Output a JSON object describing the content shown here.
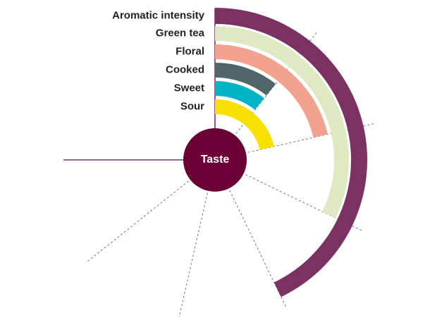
{
  "chart_data": {
    "type": "radial-bar",
    "center_label": "Taste",
    "categories": [
      "Aromatic intensity",
      "Green tea",
      "Floral",
      "Cooked",
      "Sweet",
      "Sour"
    ],
    "values": [
      4,
      3,
      2,
      1,
      1,
      2
    ],
    "colors": [
      "#7b3262",
      "#dfeac3",
      "#f2a28e",
      "#50666a",
      "#00b4c6",
      "#f8e000"
    ],
    "center_color": "#6b0034",
    "xlim": [
      0,
      7
    ],
    "xticks": [
      0,
      1,
      2,
      3,
      4,
      5,
      6,
      7
    ]
  }
}
